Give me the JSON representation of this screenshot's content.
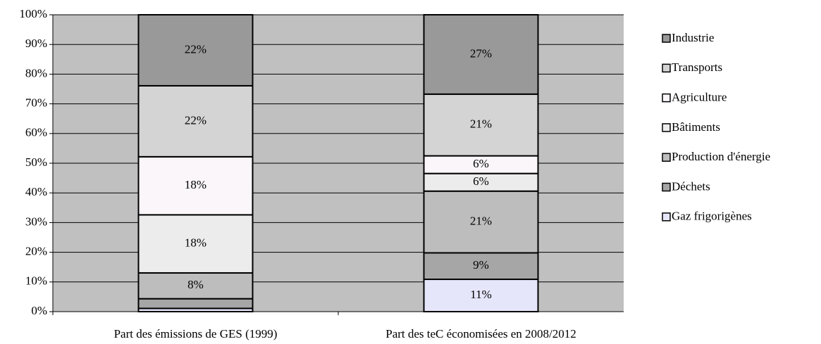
{
  "chart_data": {
    "type": "bar",
    "stacked": "percent",
    "categories": [
      "Part des émissions de GES (1999)",
      "Part des teC économisées en 2008/2012"
    ],
    "series": [
      {
        "name": "Gaz frigorigènes",
        "color": "#e6e6fa",
        "values": [
          1,
          11
        ],
        "value_labels": [
          null,
          "11%"
        ]
      },
      {
        "name": "Déchets",
        "color": "#a6a6a6",
        "values": [
          3,
          9
        ],
        "value_labels": [
          null,
          "9%"
        ]
      },
      {
        "name": "Production d'énergie",
        "color": "#bdbdbd",
        "values": [
          8,
          21
        ],
        "value_labels": [
          "8%",
          "21%"
        ]
      },
      {
        "name": "Bâtiments",
        "color": "#ececec",
        "values": [
          18,
          6
        ],
        "value_labels": [
          "18%",
          "6%"
        ]
      },
      {
        "name": "Agriculture",
        "color": "#faf6fa",
        "values": [
          18,
          6
        ],
        "value_labels": [
          "18%",
          "6%"
        ]
      },
      {
        "name": "Transports",
        "color": "#d4d4d4",
        "values": [
          22,
          21
        ],
        "value_labels": [
          "22%",
          "21%"
        ]
      },
      {
        "name": "Industrie",
        "color": "#999999",
        "values": [
          22,
          27
        ],
        "value_labels": [
          "22%",
          "27%"
        ]
      }
    ],
    "ylim": [
      0,
      100
    ],
    "yticks": [
      {
        "value": 0,
        "label": "0%"
      },
      {
        "value": 10,
        "label": "10%"
      },
      {
        "value": 20,
        "label": "20%"
      },
      {
        "value": 30,
        "label": "30%"
      },
      {
        "value": 40,
        "label": "40%"
      },
      {
        "value": 50,
        "label": "50%"
      },
      {
        "value": 60,
        "label": "60%"
      },
      {
        "value": 70,
        "label": "70%"
      },
      {
        "value": 80,
        "label": "80%"
      },
      {
        "value": 90,
        "label": "90%"
      },
      {
        "value": 100,
        "label": "100%"
      }
    ],
    "grid": true,
    "plot_background": "#c0c0c0",
    "legend": "right"
  }
}
